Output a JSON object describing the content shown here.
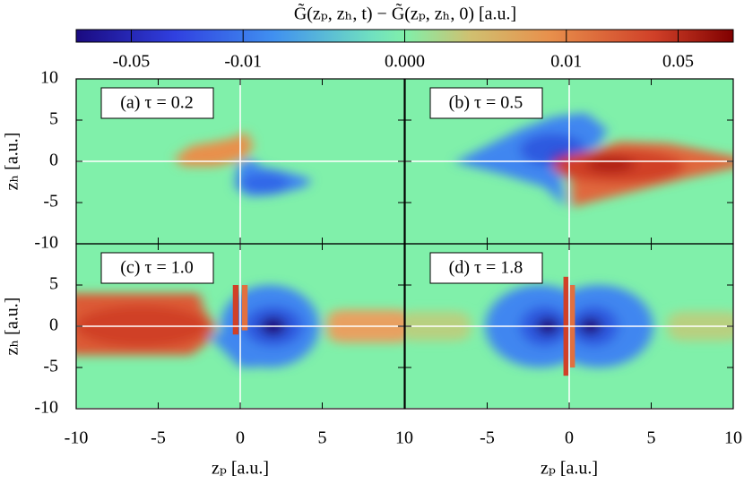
{
  "colorbar": {
    "title": "G̃(zₚ, zₕ, t) − G̃(zₚ, zₕ, 0) [a.u.]",
    "ticks": [
      -0.05,
      -0.01,
      {
        "value": 0,
        "label": "0.000"
      },
      0.01,
      0.05
    ],
    "lim": [
      -0.11,
      0.11
    ],
    "scale": "asinh",
    "linear_width": 0.002
  },
  "chart_data": [
    {
      "type": "heatmap",
      "label": "(a) τ = 0.2",
      "xlim": [
        -10,
        10
      ],
      "ylim": [
        -10,
        10
      ],
      "xticks": [
        -10,
        -5,
        0,
        5,
        10
      ],
      "yticks": [
        -10,
        -5,
        0,
        5,
        10
      ],
      "ylabel": "zₕ [a.u.]"
    },
    {
      "type": "heatmap",
      "label": "(b) τ = 0.5",
      "xlim": [
        -10,
        10
      ],
      "ylim": [
        -10,
        10
      ],
      "xticks": [
        -5,
        0,
        5,
        10
      ],
      "yticks": [
        -10,
        -5,
        0,
        5,
        10
      ]
    },
    {
      "type": "heatmap",
      "label": "(c) τ = 1.0",
      "xlim": [
        -10,
        10
      ],
      "ylim": [
        -10,
        10
      ],
      "xticks": [
        -10,
        -5,
        0,
        5,
        10
      ],
      "yticks": [
        -10,
        -5,
        0,
        5
      ],
      "xlabel": "zₚ [a.u.]",
      "ylabel": "zₕ [a.u.]"
    },
    {
      "type": "heatmap",
      "label": "(d) τ = 1.8",
      "xlim": [
        -10,
        10
      ],
      "ylim": [
        -10,
        10
      ],
      "xticks": [
        -5,
        0,
        5,
        10
      ],
      "yticks": [
        -10,
        -5,
        0,
        5,
        10
      ],
      "xlabel": "zₚ [a.u.]"
    }
  ]
}
